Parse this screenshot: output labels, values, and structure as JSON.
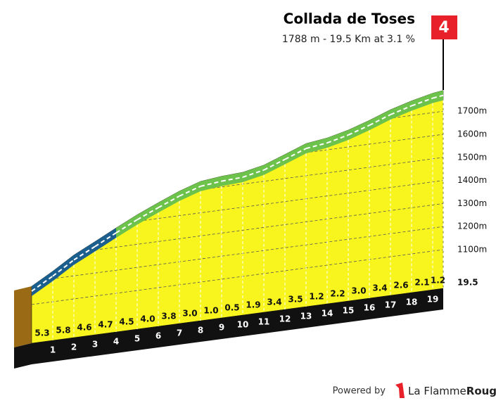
{
  "chart_data": {
    "type": "profile",
    "title": "Collada de Toses",
    "subtitle": "1788 m - 19.5 Km at 3.1 %",
    "flag": "4",
    "x": [
      1,
      2,
      3,
      4,
      5,
      6,
      7,
      8,
      9,
      10,
      11,
      12,
      13,
      14,
      15,
      16,
      17,
      18,
      19,
      19.5
    ],
    "values": [
      5.3,
      5.8,
      4.6,
      4.7,
      4.5,
      4.0,
      3.8,
      3.0,
      1.0,
      0.5,
      1.9,
      3.4,
      3.5,
      1.2,
      2.2,
      3.0,
      3.4,
      2.6,
      2.1,
      1.2
    ],
    "value_labels": [
      "5.3",
      "5.8",
      "4.6",
      "4.7",
      "4.5",
      "4.0",
      "3.8",
      "3.0",
      "1.0",
      "0.5",
      "1.9",
      "3.4",
      "3.5",
      "1.2",
      "2.2",
      "3.0",
      "3.4",
      "2.6",
      "2.1",
      "1.2"
    ],
    "colors": [
      "#1b5f8e",
      "#1b5f8e",
      "#1b5f8e",
      "#1b5f8e",
      "#6cc24a",
      "#6cc24a",
      "#6cc24a",
      "#6cc24a",
      "#6cc24a",
      "#6cc24a",
      "#6cc24a",
      "#6cc24a",
      "#6cc24a",
      "#6cc24a",
      "#6cc24a",
      "#6cc24a",
      "#6cc24a",
      "#6cc24a",
      "#6cc24a",
      "#6cc24a"
    ],
    "ylim": [
      1000,
      1800
    ],
    "yticks": [
      {
        "value": 1100,
        "label": "1100m"
      },
      {
        "value": 1200,
        "label": "1200m"
      },
      {
        "value": 1300,
        "label": "1300m"
      },
      {
        "value": 1400,
        "label": "1400m"
      },
      {
        "value": 1500,
        "label": "1500m"
      },
      {
        "value": 1600,
        "label": "1600m"
      },
      {
        "value": 1700,
        "label": "1700m"
      }
    ],
    "grid": true
  },
  "footer": {
    "powered": "Powered by",
    "brand": [
      "La Flamme",
      "Rouge"
    ]
  }
}
